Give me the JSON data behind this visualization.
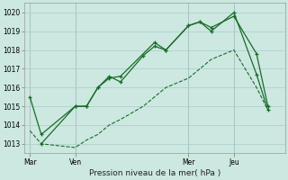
{
  "background_color": "#cce8e0",
  "grid_color": "#aacccc",
  "line_color": "#1a6b2a",
  "title": "Pression niveau de la mer( hPa )",
  "ylim": [
    1012.5,
    1020.5
  ],
  "yticks": [
    1013,
    1014,
    1015,
    1016,
    1017,
    1018,
    1019,
    1020
  ],
  "xtick_labels": [
    "Mar",
    "Ven",
    "Mer",
    "Jeu"
  ],
  "xtick_positions": [
    0.0,
    16.0,
    56.0,
    72.0
  ],
  "xvlines": [
    0.0,
    16.0,
    56.0,
    72.0
  ],
  "xlim": [
    -2,
    90
  ],
  "line1_x": [
    0,
    4,
    16,
    20,
    24,
    28,
    32,
    40,
    44,
    48,
    56,
    60,
    64,
    72,
    80,
    84
  ],
  "line1_y": [
    1015.5,
    1013.5,
    1015.0,
    1015.0,
    1016.0,
    1016.6,
    1016.3,
    1017.7,
    1018.2,
    1018.0,
    1019.3,
    1019.5,
    1019.0,
    1020.0,
    1016.7,
    1014.8
  ],
  "line2_x": [
    0,
    4,
    16,
    20,
    24,
    28,
    32,
    40,
    44,
    48,
    56,
    60,
    64,
    72,
    80,
    84
  ],
  "line2_y": [
    1013.7,
    1013.0,
    1012.8,
    1013.2,
    1013.5,
    1014.0,
    1014.3,
    1015.0,
    1015.5,
    1016.0,
    1016.5,
    1017.0,
    1017.5,
    1018.0,
    1016.0,
    1014.8
  ],
  "line3_x": [
    4,
    16,
    20,
    24,
    28,
    32,
    44,
    48,
    56,
    60,
    64,
    72,
    80,
    84
  ],
  "line3_y": [
    1013.0,
    1015.0,
    1015.0,
    1016.0,
    1016.5,
    1016.6,
    1018.4,
    1018.0,
    1019.3,
    1019.5,
    1019.2,
    1019.8,
    1017.8,
    1015.0
  ]
}
